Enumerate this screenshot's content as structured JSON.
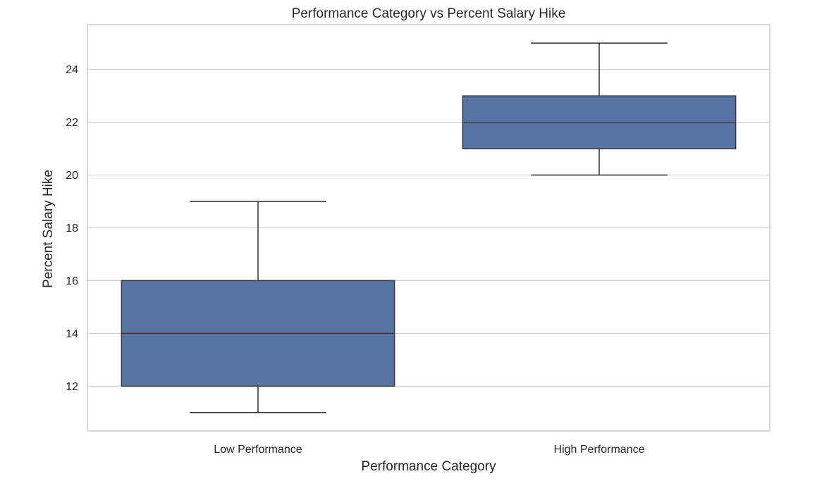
{
  "chart_data": {
    "type": "box",
    "title": "Performance Category vs Percent Salary Hike",
    "xlabel": "Performance Category",
    "ylabel": "Percent Salary Hike",
    "categories": [
      "Low Performance",
      "High Performance"
    ],
    "boxes": [
      {
        "category": "Low Performance",
        "whisker_low": 11,
        "q1": 12,
        "median": 14,
        "q3": 16,
        "whisker_high": 19
      },
      {
        "category": "High Performance",
        "whisker_low": 20,
        "q1": 21,
        "median": 22,
        "q3": 23,
        "whisker_high": 25
      }
    ],
    "yticks": [
      12,
      14,
      16,
      18,
      20,
      22,
      24
    ],
    "ylim": [
      10.3,
      25.7
    ],
    "grid": "horizontal",
    "legend": "none",
    "colors": {
      "box_fill": "#5874a4",
      "line": "#3d3d3d",
      "grid": "#d0d0d0",
      "frame": "#cccccc",
      "text": "#262626"
    }
  }
}
